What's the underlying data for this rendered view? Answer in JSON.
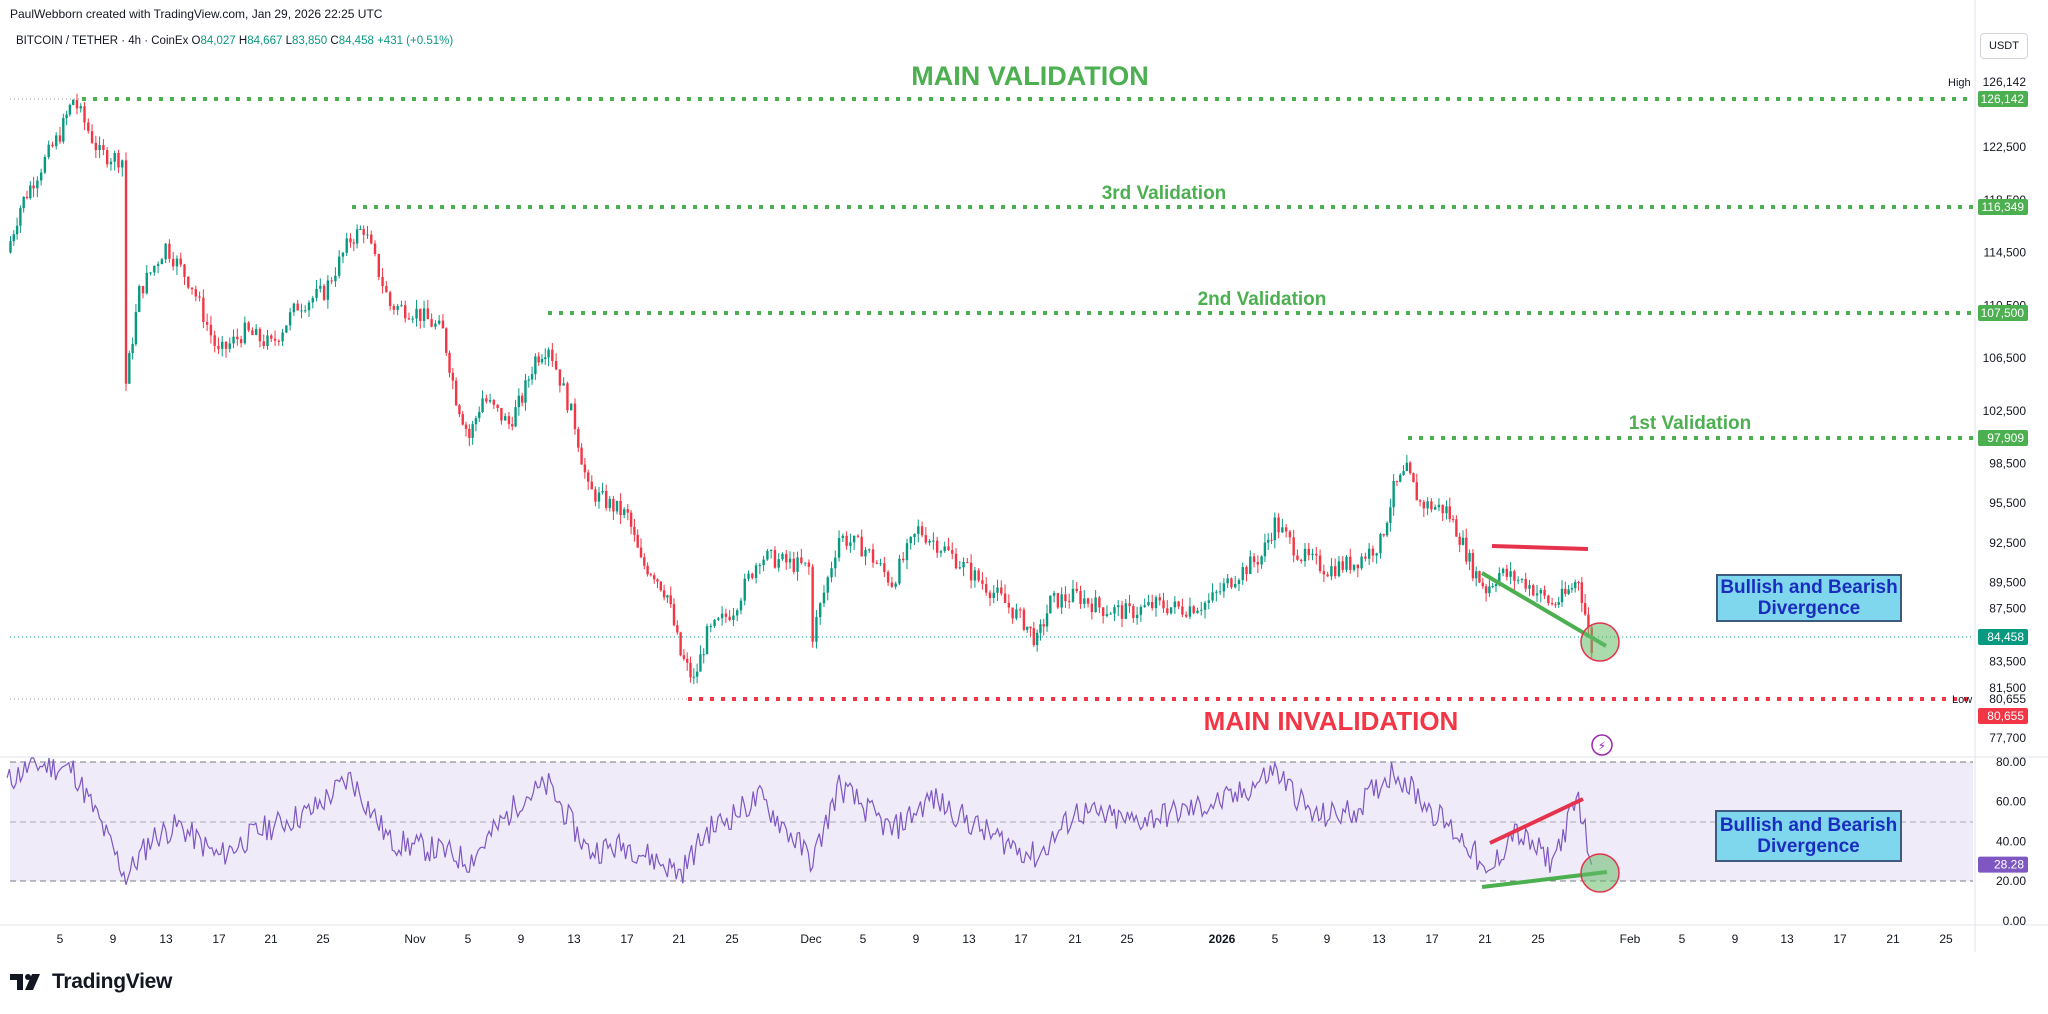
{
  "header": {
    "attribution": "PaulWebborn created with TradingView.com, Jan 29, 2026 22:25 UTC",
    "symbol": "BITCOIN / TETHER · 4h · CoinEx",
    "open_label": "O",
    "open": "84,027",
    "high_label": "H",
    "high": "84,667",
    "low_label": "L",
    "low": "83,850",
    "close_label": "C",
    "close": "84,458",
    "change": "+431 (+0.51%)",
    "currency": "USDT"
  },
  "annotations": {
    "main_validation": "MAIN VALIDATION",
    "third_validation": "3rd Validation",
    "second_validation": "2nd Validation",
    "first_validation": "1st Validation",
    "main_invalidation": "MAIN INVALIDATION",
    "divergence_price": "Bullish and Bearish\nDivergence",
    "divergence_rsi": "Bullish and Bearish\nDivergence"
  },
  "price_axis": {
    "ticks": [
      "122,500",
      "118,500",
      "114,500",
      "110,500",
      "106,500",
      "102,500",
      "98,500",
      "95,500",
      "92,500",
      "89,500",
      "87,500",
      "85,500",
      "83,500",
      "81,500",
      "77,700"
    ],
    "high_label": "High",
    "high_value": "126,142",
    "low_label": "Low",
    "low_value": "80,655",
    "tags": [
      {
        "value": "126,142",
        "color": "#4caf50"
      },
      {
        "value": "116,349",
        "color": "#4caf50"
      },
      {
        "value": "107,500",
        "color": "#4caf50"
      },
      {
        "value": "97,909",
        "color": "#4caf50"
      },
      {
        "value": "84,458",
        "color": "#089981"
      },
      {
        "value": "80,655",
        "color": "#f23645"
      }
    ]
  },
  "rsi_axis": {
    "ticks": [
      "80.00",
      "60.00",
      "40.00",
      "20.00",
      "0.00"
    ],
    "current": "28.28",
    "current_color": "#7e57c2"
  },
  "time_axis": {
    "ticks": [
      "5",
      "9",
      "13",
      "17",
      "21",
      "25",
      "Nov",
      "5",
      "9",
      "13",
      "17",
      "21",
      "25",
      "Dec",
      "5",
      "9",
      "13",
      "17",
      "21",
      "25",
      "2026",
      "5",
      "9",
      "13",
      "17",
      "21",
      "25",
      "Feb",
      "5",
      "9",
      "13",
      "17",
      "21",
      "25"
    ]
  },
  "chart_data": [
    {
      "type": "candlestick",
      "title": "BITCOIN / TETHER · 4h · CoinEx",
      "ylim": [
        76900,
        128500
      ],
      "levels": [
        {
          "name": "MAIN VALIDATION",
          "value": 126142,
          "color": "#4caf50"
        },
        {
          "name": "3rd Validation",
          "value": 116349,
          "color": "#4caf50"
        },
        {
          "name": "2nd Validation",
          "value": 107500,
          "color": "#4caf50"
        },
        {
          "name": "1st Validation",
          "value": 97909,
          "color": "#4caf50"
        },
        {
          "name": "MAIN INVALIDATION",
          "value": 80655,
          "color": "#f23645"
        }
      ],
      "last_price": 84458,
      "approx_path": [
        {
          "x": "Oct 1",
          "y": 114500
        },
        {
          "x": "Oct 2",
          "y": 118000
        },
        {
          "x": "Oct 3",
          "y": 120000
        },
        {
          "x": "Oct 5",
          "y": 123500
        },
        {
          "x": "Oct 6",
          "y": 126142
        },
        {
          "x": "Oct 8",
          "y": 122000
        },
        {
          "x": "Oct 10",
          "y": 121500
        },
        {
          "x": "Oct 10",
          "y": 104600
        },
        {
          "x": "Oct 11",
          "y": 111500
        },
        {
          "x": "Oct 13",
          "y": 115000
        },
        {
          "x": "Oct 15",
          "y": 112000
        },
        {
          "x": "Oct 17",
          "y": 106800
        },
        {
          "x": "Oct 19",
          "y": 108500
        },
        {
          "x": "Oct 21",
          "y": 107500
        },
        {
          "x": "Oct 23",
          "y": 110500
        },
        {
          "x": "Oct 25",
          "y": 111500
        },
        {
          "x": "Oct 27",
          "y": 115500
        },
        {
          "x": "Oct 28",
          "y": 116349
        },
        {
          "x": "Oct 30",
          "y": 110500
        },
        {
          "x": "Nov 1",
          "y": 110000
        },
        {
          "x": "Nov 3",
          "y": 108500
        },
        {
          "x": "Nov 4",
          "y": 103500
        },
        {
          "x": "Nov 5",
          "y": 100500
        },
        {
          "x": "Nov 6",
          "y": 103500
        },
        {
          "x": "Nov 8",
          "y": 101500
        },
        {
          "x": "Nov 9",
          "y": 103500
        },
        {
          "x": "Nov 10",
          "y": 106500
        },
        {
          "x": "Nov 11",
          "y": 107500
        },
        {
          "x": "Nov 13",
          "y": 101500
        },
        {
          "x": "Nov 14",
          "y": 96500
        },
        {
          "x": "Nov 17",
          "y": 94500
        },
        {
          "x": "Nov 18",
          "y": 91000
        },
        {
          "x": "Nov 19",
          "y": 90200
        },
        {
          "x": "Nov 20",
          "y": 88500
        },
        {
          "x": "Nov 21",
          "y": 84000
        },
        {
          "x": "Nov 22",
          "y": 82000
        },
        {
          "x": "Nov 23",
          "y": 85500
        },
        {
          "x": "Nov 25",
          "y": 87500
        },
        {
          "x": "Nov 27",
          "y": 91500
        },
        {
          "x": "Nov 29",
          "y": 91000
        },
        {
          "x": "Dec 1",
          "y": 90500
        },
        {
          "x": "Dec 1",
          "y": 85500
        },
        {
          "x": "Dec 3",
          "y": 93000
        },
        {
          "x": "Dec 5",
          "y": 92000
        },
        {
          "x": "Dec 7",
          "y": 89500
        },
        {
          "x": "Dec 9",
          "y": 93500
        },
        {
          "x": "Dec 11",
          "y": 92000
        },
        {
          "x": "Dec 13",
          "y": 90200
        },
        {
          "x": "Dec 15",
          "y": 88500
        },
        {
          "x": "Dec 17",
          "y": 86500
        },
        {
          "x": "Dec 18",
          "y": 85000
        },
        {
          "x": "Dec 19",
          "y": 88000
        },
        {
          "x": "Dec 21",
          "y": 88500
        },
        {
          "x": "Dec 23",
          "y": 87500
        },
        {
          "x": "Dec 25",
          "y": 87200
        },
        {
          "x": "Dec 27",
          "y": 87800
        },
        {
          "x": "Dec 29",
          "y": 87500
        },
        {
          "x": "Dec 31",
          "y": 88000
        },
        {
          "x": "Jan 2",
          "y": 90000
        },
        {
          "x": "Jan 4",
          "y": 91500
        },
        {
          "x": "Jan 5",
          "y": 94000
        },
        {
          "x": "Jan 7",
          "y": 91500
        },
        {
          "x": "Jan 9",
          "y": 90500
        },
        {
          "x": "Jan 11",
          "y": 91000
        },
        {
          "x": "Jan 13",
          "y": 92500
        },
        {
          "x": "Jan 14",
          "y": 96500
        },
        {
          "x": "Jan 15",
          "y": 97909
        },
        {
          "x": "Jan 16",
          "y": 95500
        },
        {
          "x": "Jan 18",
          "y": 95000
        },
        {
          "x": "Jan 19",
          "y": 93000
        },
        {
          "x": "Jan 20",
          "y": 90500
        },
        {
          "x": "Jan 21",
          "y": 89000
        },
        {
          "x": "Jan 22",
          "y": 90200
        },
        {
          "x": "Jan 24",
          "y": 89500
        },
        {
          "x": "Jan 26",
          "y": 87800
        },
        {
          "x": "Jan 27",
          "y": 88500
        },
        {
          "x": "Jan 28",
          "y": 89800
        },
        {
          "x": "Jan 29",
          "y": 84458
        }
      ]
    },
    {
      "type": "line",
      "title": "",
      "ylim": [
        0,
        80
      ],
      "levels": [
        80,
        50,
        20
      ],
      "last_value": 28.28,
      "approx_path": [
        {
          "x": "Oct 1",
          "y": 70
        },
        {
          "x": "Oct 3",
          "y": 79
        },
        {
          "x": "Oct 6",
          "y": 76
        },
        {
          "x": "Oct 8",
          "y": 50
        },
        {
          "x": "Oct 10",
          "y": 22
        },
        {
          "x": "Oct 12",
          "y": 42
        },
        {
          "x": "Oct 14",
          "y": 48
        },
        {
          "x": "Oct 17",
          "y": 32
        },
        {
          "x": "Oct 20",
          "y": 45
        },
        {
          "x": "Oct 24",
          "y": 55
        },
        {
          "x": "Oct 27",
          "y": 72
        },
        {
          "x": "Oct 30",
          "y": 40
        },
        {
          "x": "Nov 3",
          "y": 35
        },
        {
          "x": "Nov 5",
          "y": 30
        },
        {
          "x": "Nov 9",
          "y": 62
        },
        {
          "x": "Nov 11",
          "y": 68
        },
        {
          "x": "Nov 14",
          "y": 35
        },
        {
          "x": "Nov 17",
          "y": 38
        },
        {
          "x": "Nov 21",
          "y": 24
        },
        {
          "x": "Nov 23",
          "y": 45
        },
        {
          "x": "Nov 27",
          "y": 62
        },
        {
          "x": "Dec 1",
          "y": 30
        },
        {
          "x": "Dec 3",
          "y": 68
        },
        {
          "x": "Dec 7",
          "y": 45
        },
        {
          "x": "Dec 10",
          "y": 62
        },
        {
          "x": "Dec 14",
          "y": 45
        },
        {
          "x": "Dec 18",
          "y": 32
        },
        {
          "x": "Dec 21",
          "y": 55
        },
        {
          "x": "Dec 25",
          "y": 50
        },
        {
          "x": "Dec 29",
          "y": 55
        },
        {
          "x": "Jan 2",
          "y": 62
        },
        {
          "x": "Jan 5",
          "y": 76
        },
        {
          "x": "Jan 8",
          "y": 52
        },
        {
          "x": "Jan 11",
          "y": 55
        },
        {
          "x": "Jan 14",
          "y": 76
        },
        {
          "x": "Jan 17",
          "y": 55
        },
        {
          "x": "Jan 20",
          "y": 36
        },
        {
          "x": "Jan 21",
          "y": 20
        },
        {
          "x": "Jan 23",
          "y": 45
        },
        {
          "x": "Jan 26",
          "y": 30
        },
        {
          "x": "Jan 28",
          "y": 62
        },
        {
          "x": "Jan 29",
          "y": 28.28
        }
      ]
    }
  ],
  "logo": {
    "text": "TradingView"
  }
}
